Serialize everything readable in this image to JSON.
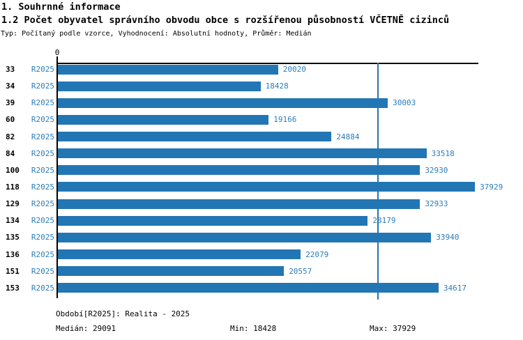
{
  "header": {
    "title1": "1. Souhrnné informace",
    "title2": "1.2 Počet obyvatel správního obvodu obce s rozšířenou působností VČETNĚ cizinců",
    "meta": "Typ: Počítaný podle vzorce, Vyhodnocení: Absolutní hodnoty, Průměr: Medián"
  },
  "chart_data": {
    "type": "bar",
    "orientation": "horizontal",
    "categories": [
      "33",
      "34",
      "39",
      "60",
      "82",
      "84",
      "100",
      "118",
      "129",
      "134",
      "135",
      "136",
      "151",
      "153"
    ],
    "series_label": "R2025",
    "values": [
      20020,
      18428,
      30003,
      19166,
      24884,
      33518,
      32930,
      37929,
      32933,
      28179,
      33940,
      22079,
      20557,
      34617
    ],
    "axis_origin_label": "0",
    "xlim": [
      0,
      38300
    ],
    "median_line_value": 29091,
    "grid": false,
    "legend": false,
    "bar_color": "#2276b4",
    "label_color": "#2b7cba",
    "median_line_color": "#2276b4",
    "axis_color": "#000000"
  },
  "footer": {
    "period": "Období[R2025]: Realita - 2025",
    "median": "Medián: 29091",
    "min": "Min: 18428",
    "max": "Max: 37929"
  }
}
